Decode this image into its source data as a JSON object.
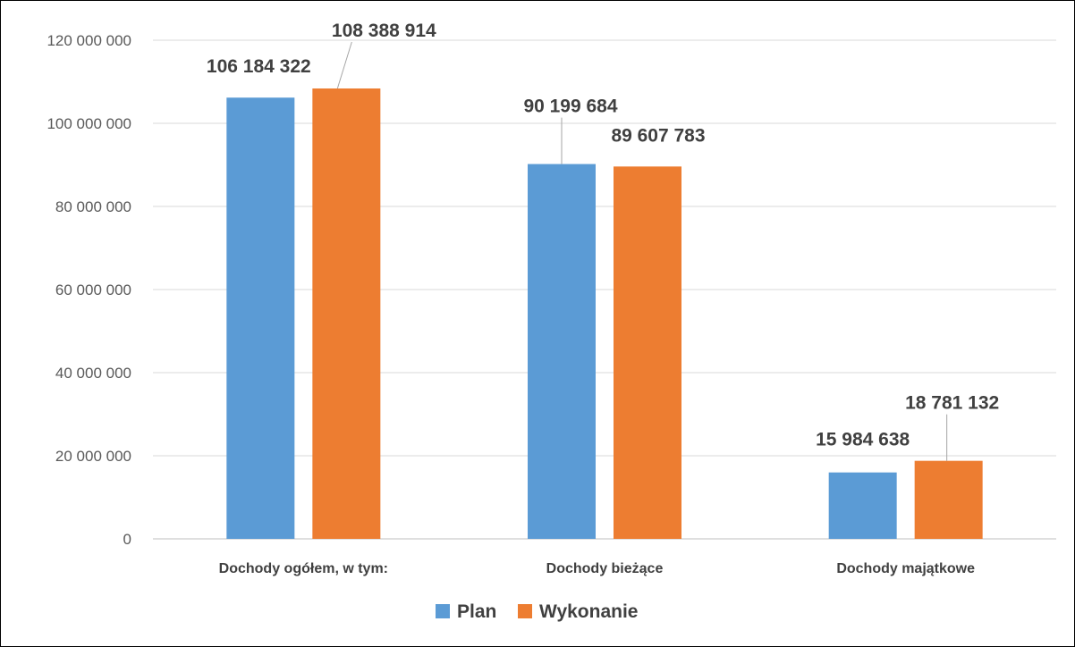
{
  "chart_data": {
    "type": "bar",
    "categories": [
      "Dochody ogółem, w tym:",
      "Dochody bieżące",
      "Dochody majątkowe"
    ],
    "series": [
      {
        "name": "Plan",
        "color": "#5B9BD5",
        "values": [
          106184322,
          90199684,
          15984638
        ],
        "labels": [
          "106 184 322",
          "90 199 684",
          "15 984 638"
        ]
      },
      {
        "name": "Wykonanie",
        "color": "#ED7D31",
        "values": [
          108388914,
          89607783,
          18781132
        ],
        "labels": [
          "108 388 914",
          "89 607 783",
          "18 781 132"
        ]
      }
    ],
    "yticks": [
      0,
      20000000,
      40000000,
      60000000,
      80000000,
      100000000,
      120000000
    ],
    "ytick_labels": [
      "0",
      "20 000 000",
      "40 000 000",
      "60 000 000",
      "80 000 000",
      "100 000 000",
      "120 000 000"
    ],
    "ylim": [
      0,
      120000000
    ],
    "grid": true,
    "legend_position": "bottom",
    "title": "",
    "xlabel": "",
    "ylabel": ""
  }
}
